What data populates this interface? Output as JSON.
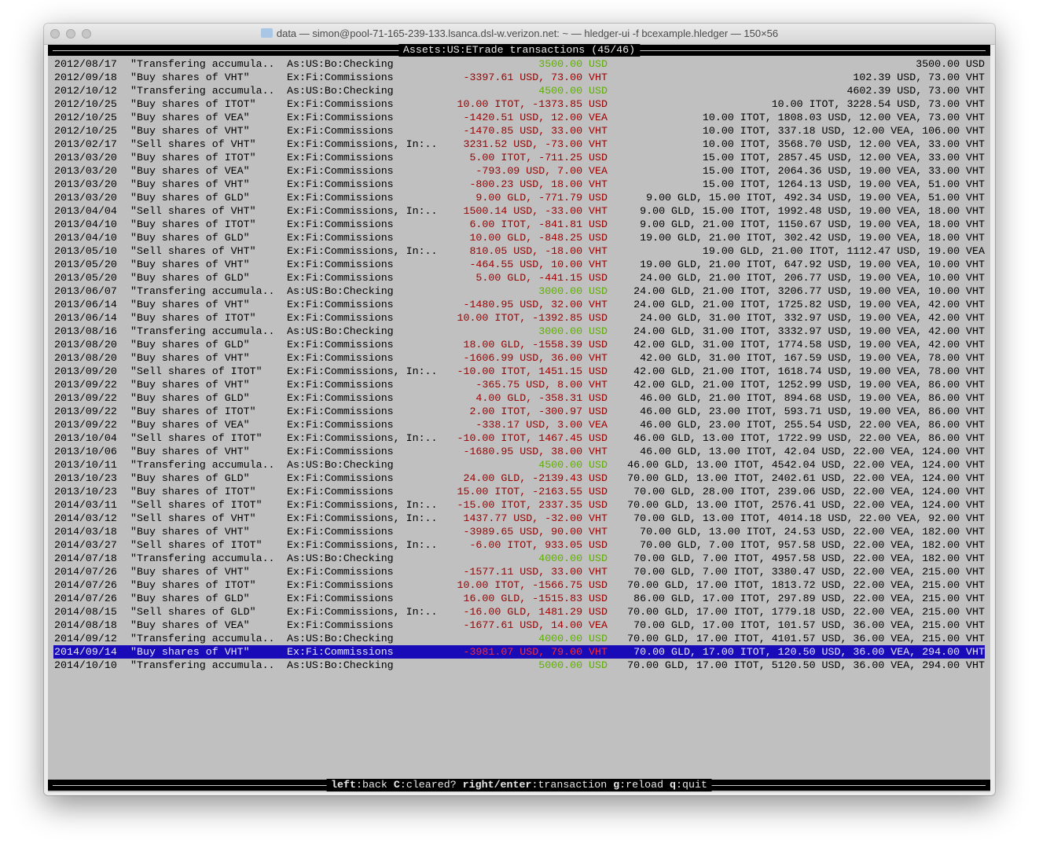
{
  "window": {
    "title": "data — simon@pool-71-165-239-133.lsanca.dsl-w.verizon.net: ~ — hledger-ui -f bcexample.hledger — 150×56"
  },
  "header": {
    "account": "Assets:US:ETrade",
    "suffix": " transactions (45/46)"
  },
  "colors": {
    "negative": "#a00000",
    "positive": "#5faf00",
    "selection": "#1a0bb8",
    "background": "#c0c0c0"
  },
  "selected_index": 44,
  "rows": [
    {
      "date": "2012/08/17",
      "desc": "\"Transfering accumula..",
      "account": "As:US:Bo:Checking",
      "amount": "3500.00 USD",
      "sign": "pos",
      "balance": "3500.00 USD"
    },
    {
      "date": "2012/09/18",
      "desc": "\"Buy shares of VHT\"",
      "account": "Ex:Fi:Commissions",
      "amount": "-3397.61 USD, 73.00 VHT",
      "sign": "neg",
      "balance": "102.39 USD, 73.00 VHT"
    },
    {
      "date": "2012/10/12",
      "desc": "\"Transfering accumula..",
      "account": "As:US:Bo:Checking",
      "amount": "4500.00 USD",
      "sign": "pos",
      "balance": "4602.39 USD, 73.00 VHT"
    },
    {
      "date": "2012/10/25",
      "desc": "\"Buy shares of ITOT\"",
      "account": "Ex:Fi:Commissions",
      "amount": "10.00 ITOT, -1373.85 USD",
      "sign": "neg",
      "balance": "10.00 ITOT, 3228.54 USD, 73.00 VHT"
    },
    {
      "date": "2012/10/25",
      "desc": "\"Buy shares of VEA\"",
      "account": "Ex:Fi:Commissions",
      "amount": "-1420.51 USD, 12.00 VEA",
      "sign": "neg",
      "balance": "10.00 ITOT, 1808.03 USD, 12.00 VEA, 73.00 VHT"
    },
    {
      "date": "2012/10/25",
      "desc": "\"Buy shares of VHT\"",
      "account": "Ex:Fi:Commissions",
      "amount": "-1470.85 USD, 33.00 VHT",
      "sign": "neg",
      "balance": "10.00 ITOT, 337.18 USD, 12.00 VEA, 106.00 VHT"
    },
    {
      "date": "2013/02/17",
      "desc": "\"Sell shares of VHT\"",
      "account": "Ex:Fi:Commissions, In:..",
      "amount": "3231.52 USD, -73.00 VHT",
      "sign": "neg",
      "balance": "10.00 ITOT, 3568.70 USD, 12.00 VEA, 33.00 VHT"
    },
    {
      "date": "2013/03/20",
      "desc": "\"Buy shares of ITOT\"",
      "account": "Ex:Fi:Commissions",
      "amount": "5.00 ITOT, -711.25 USD",
      "sign": "neg",
      "balance": "15.00 ITOT, 2857.45 USD, 12.00 VEA, 33.00 VHT"
    },
    {
      "date": "2013/03/20",
      "desc": "\"Buy shares of VEA\"",
      "account": "Ex:Fi:Commissions",
      "amount": "-793.09 USD, 7.00 VEA",
      "sign": "neg",
      "balance": "15.00 ITOT, 2064.36 USD, 19.00 VEA, 33.00 VHT"
    },
    {
      "date": "2013/03/20",
      "desc": "\"Buy shares of VHT\"",
      "account": "Ex:Fi:Commissions",
      "amount": "-800.23 USD, 18.00 VHT",
      "sign": "neg",
      "balance": "15.00 ITOT, 1264.13 USD, 19.00 VEA, 51.00 VHT"
    },
    {
      "date": "2013/03/20",
      "desc": "\"Buy shares of GLD\"",
      "account": "Ex:Fi:Commissions",
      "amount": "9.00 GLD, -771.79 USD",
      "sign": "neg",
      "balance": "9.00 GLD, 15.00 ITOT, 492.34 USD, 19.00 VEA, 51.00 VHT"
    },
    {
      "date": "2013/04/04",
      "desc": "\"Sell shares of VHT\"",
      "account": "Ex:Fi:Commissions, In:..",
      "amount": "1500.14 USD, -33.00 VHT",
      "sign": "neg",
      "balance": "9.00 GLD, 15.00 ITOT, 1992.48 USD, 19.00 VEA, 18.00 VHT"
    },
    {
      "date": "2013/04/10",
      "desc": "\"Buy shares of ITOT\"",
      "account": "Ex:Fi:Commissions",
      "amount": "6.00 ITOT, -841.81 USD",
      "sign": "neg",
      "balance": "9.00 GLD, 21.00 ITOT, 1150.67 USD, 19.00 VEA, 18.00 VHT"
    },
    {
      "date": "2013/04/10",
      "desc": "\"Buy shares of GLD\"",
      "account": "Ex:Fi:Commissions",
      "amount": "10.00 GLD, -848.25 USD",
      "sign": "neg",
      "balance": "19.00 GLD, 21.00 ITOT, 302.42 USD, 19.00 VEA, 18.00 VHT"
    },
    {
      "date": "2013/05/10",
      "desc": "\"Sell shares of VHT\"",
      "account": "Ex:Fi:Commissions, In:..",
      "amount": "810.05 USD, -18.00 VHT",
      "sign": "neg",
      "balance": "19.00 GLD, 21.00 ITOT, 1112.47 USD, 19.00 VEA"
    },
    {
      "date": "2013/05/20",
      "desc": "\"Buy shares of VHT\"",
      "account": "Ex:Fi:Commissions",
      "amount": "-464.55 USD, 10.00 VHT",
      "sign": "neg",
      "balance": "19.00 GLD, 21.00 ITOT, 647.92 USD, 19.00 VEA, 10.00 VHT"
    },
    {
      "date": "2013/05/20",
      "desc": "\"Buy shares of GLD\"",
      "account": "Ex:Fi:Commissions",
      "amount": "5.00 GLD, -441.15 USD",
      "sign": "neg",
      "balance": "24.00 GLD, 21.00 ITOT, 206.77 USD, 19.00 VEA, 10.00 VHT"
    },
    {
      "date": "2013/06/07",
      "desc": "\"Transfering accumula..",
      "account": "As:US:Bo:Checking",
      "amount": "3000.00 USD",
      "sign": "pos",
      "balance": "24.00 GLD, 21.00 ITOT, 3206.77 USD, 19.00 VEA, 10.00 VHT"
    },
    {
      "date": "2013/06/14",
      "desc": "\"Buy shares of VHT\"",
      "account": "Ex:Fi:Commissions",
      "amount": "-1480.95 USD, 32.00 VHT",
      "sign": "neg",
      "balance": "24.00 GLD, 21.00 ITOT, 1725.82 USD, 19.00 VEA, 42.00 VHT"
    },
    {
      "date": "2013/06/14",
      "desc": "\"Buy shares of ITOT\"",
      "account": "Ex:Fi:Commissions",
      "amount": "10.00 ITOT, -1392.85 USD",
      "sign": "neg",
      "balance": "24.00 GLD, 31.00 ITOT, 332.97 USD, 19.00 VEA, 42.00 VHT"
    },
    {
      "date": "2013/08/16",
      "desc": "\"Transfering accumula..",
      "account": "As:US:Bo:Checking",
      "amount": "3000.00 USD",
      "sign": "pos",
      "balance": "24.00 GLD, 31.00 ITOT, 3332.97 USD, 19.00 VEA, 42.00 VHT"
    },
    {
      "date": "2013/08/20",
      "desc": "\"Buy shares of GLD\"",
      "account": "Ex:Fi:Commissions",
      "amount": "18.00 GLD, -1558.39 USD",
      "sign": "neg",
      "balance": "42.00 GLD, 31.00 ITOT, 1774.58 USD, 19.00 VEA, 42.00 VHT"
    },
    {
      "date": "2013/08/20",
      "desc": "\"Buy shares of VHT\"",
      "account": "Ex:Fi:Commissions",
      "amount": "-1606.99 USD, 36.00 VHT",
      "sign": "neg",
      "balance": "42.00 GLD, 31.00 ITOT, 167.59 USD, 19.00 VEA, 78.00 VHT"
    },
    {
      "date": "2013/09/20",
      "desc": "\"Sell shares of ITOT\"",
      "account": "Ex:Fi:Commissions, In:..",
      "amount": "-10.00 ITOT, 1451.15 USD",
      "sign": "neg",
      "balance": "42.00 GLD, 21.00 ITOT, 1618.74 USD, 19.00 VEA, 78.00 VHT"
    },
    {
      "date": "2013/09/22",
      "desc": "\"Buy shares of VHT\"",
      "account": "Ex:Fi:Commissions",
      "amount": "-365.75 USD, 8.00 VHT",
      "sign": "neg",
      "balance": "42.00 GLD, 21.00 ITOT, 1252.99 USD, 19.00 VEA, 86.00 VHT"
    },
    {
      "date": "2013/09/22",
      "desc": "\"Buy shares of GLD\"",
      "account": "Ex:Fi:Commissions",
      "amount": "4.00 GLD, -358.31 USD",
      "sign": "neg",
      "balance": "46.00 GLD, 21.00 ITOT, 894.68 USD, 19.00 VEA, 86.00 VHT"
    },
    {
      "date": "2013/09/22",
      "desc": "\"Buy shares of ITOT\"",
      "account": "Ex:Fi:Commissions",
      "amount": "2.00 ITOT, -300.97 USD",
      "sign": "neg",
      "balance": "46.00 GLD, 23.00 ITOT, 593.71 USD, 19.00 VEA, 86.00 VHT"
    },
    {
      "date": "2013/09/22",
      "desc": "\"Buy shares of VEA\"",
      "account": "Ex:Fi:Commissions",
      "amount": "-338.17 USD, 3.00 VEA",
      "sign": "neg",
      "balance": "46.00 GLD, 23.00 ITOT, 255.54 USD, 22.00 VEA, 86.00 VHT"
    },
    {
      "date": "2013/10/04",
      "desc": "\"Sell shares of ITOT\"",
      "account": "Ex:Fi:Commissions, In:..",
      "amount": "-10.00 ITOT, 1467.45 USD",
      "sign": "neg",
      "balance": "46.00 GLD, 13.00 ITOT, 1722.99 USD, 22.00 VEA, 86.00 VHT"
    },
    {
      "date": "2013/10/06",
      "desc": "\"Buy shares of VHT\"",
      "account": "Ex:Fi:Commissions",
      "amount": "-1680.95 USD, 38.00 VHT",
      "sign": "neg",
      "balance": "46.00 GLD, 13.00 ITOT, 42.04 USD, 22.00 VEA, 124.00 VHT"
    },
    {
      "date": "2013/10/11",
      "desc": "\"Transfering accumula..",
      "account": "As:US:Bo:Checking",
      "amount": "4500.00 USD",
      "sign": "pos",
      "balance": "46.00 GLD, 13.00 ITOT, 4542.04 USD, 22.00 VEA, 124.00 VHT"
    },
    {
      "date": "2013/10/23",
      "desc": "\"Buy shares of GLD\"",
      "account": "Ex:Fi:Commissions",
      "amount": "24.00 GLD, -2139.43 USD",
      "sign": "neg",
      "balance": "70.00 GLD, 13.00 ITOT, 2402.61 USD, 22.00 VEA, 124.00 VHT"
    },
    {
      "date": "2013/10/23",
      "desc": "\"Buy shares of ITOT\"",
      "account": "Ex:Fi:Commissions",
      "amount": "15.00 ITOT, -2163.55 USD",
      "sign": "neg",
      "balance": "70.00 GLD, 28.00 ITOT, 239.06 USD, 22.00 VEA, 124.00 VHT"
    },
    {
      "date": "2014/03/11",
      "desc": "\"Sell shares of ITOT\"",
      "account": "Ex:Fi:Commissions, In:..",
      "amount": "-15.00 ITOT, 2337.35 USD",
      "sign": "neg",
      "balance": "70.00 GLD, 13.00 ITOT, 2576.41 USD, 22.00 VEA, 124.00 VHT"
    },
    {
      "date": "2014/03/12",
      "desc": "\"Sell shares of VHT\"",
      "account": "Ex:Fi:Commissions, In:..",
      "amount": "1437.77 USD, -32.00 VHT",
      "sign": "neg",
      "balance": "70.00 GLD, 13.00 ITOT, 4014.18 USD, 22.00 VEA, 92.00 VHT"
    },
    {
      "date": "2014/03/18",
      "desc": "\"Buy shares of VHT\"",
      "account": "Ex:Fi:Commissions",
      "amount": "-3989.65 USD, 90.00 VHT",
      "sign": "neg",
      "balance": "70.00 GLD, 13.00 ITOT, 24.53 USD, 22.00 VEA, 182.00 VHT"
    },
    {
      "date": "2014/03/27",
      "desc": "\"Sell shares of ITOT\"",
      "account": "Ex:Fi:Commissions, In:..",
      "amount": "-6.00 ITOT, 933.05 USD",
      "sign": "neg",
      "balance": "70.00 GLD, 7.00 ITOT, 957.58 USD, 22.00 VEA, 182.00 VHT"
    },
    {
      "date": "2014/07/18",
      "desc": "\"Transfering accumula..",
      "account": "As:US:Bo:Checking",
      "amount": "4000.00 USD",
      "sign": "pos",
      "balance": "70.00 GLD, 7.00 ITOT, 4957.58 USD, 22.00 VEA, 182.00 VHT"
    },
    {
      "date": "2014/07/26",
      "desc": "\"Buy shares of VHT\"",
      "account": "Ex:Fi:Commissions",
      "amount": "-1577.11 USD, 33.00 VHT",
      "sign": "neg",
      "balance": "70.00 GLD, 7.00 ITOT, 3380.47 USD, 22.00 VEA, 215.00 VHT"
    },
    {
      "date": "2014/07/26",
      "desc": "\"Buy shares of ITOT\"",
      "account": "Ex:Fi:Commissions",
      "amount": "10.00 ITOT, -1566.75 USD",
      "sign": "neg",
      "balance": "70.00 GLD, 17.00 ITOT, 1813.72 USD, 22.00 VEA, 215.00 VHT"
    },
    {
      "date": "2014/07/26",
      "desc": "\"Buy shares of GLD\"",
      "account": "Ex:Fi:Commissions",
      "amount": "16.00 GLD, -1515.83 USD",
      "sign": "neg",
      "balance": "86.00 GLD, 17.00 ITOT, 297.89 USD, 22.00 VEA, 215.00 VHT"
    },
    {
      "date": "2014/08/15",
      "desc": "\"Sell shares of GLD\"",
      "account": "Ex:Fi:Commissions, In:..",
      "amount": "-16.00 GLD, 1481.29 USD",
      "sign": "neg",
      "balance": "70.00 GLD, 17.00 ITOT, 1779.18 USD, 22.00 VEA, 215.00 VHT"
    },
    {
      "date": "2014/08/18",
      "desc": "\"Buy shares of VEA\"",
      "account": "Ex:Fi:Commissions",
      "amount": "-1677.61 USD, 14.00 VEA",
      "sign": "neg",
      "balance": "70.00 GLD, 17.00 ITOT, 101.57 USD, 36.00 VEA, 215.00 VHT"
    },
    {
      "date": "2014/09/12",
      "desc": "\"Transfering accumula..",
      "account": "As:US:Bo:Checking",
      "amount": "4000.00 USD",
      "sign": "pos",
      "balance": "70.00 GLD, 17.00 ITOT, 4101.57 USD, 36.00 VEA, 215.00 VHT"
    },
    {
      "date": "2014/09/14",
      "desc": "\"Buy shares of VHT\"",
      "account": "Ex:Fi:Commissions",
      "amount": "-3981.07 USD, 79.00 VHT",
      "sign": "neg",
      "balance": "70.00 GLD, 17.00 ITOT, 120.50 USD, 36.00 VEA, 294.00 VHT"
    },
    {
      "date": "2014/10/10",
      "desc": "\"Transfering accumula..",
      "account": "As:US:Bo:Checking",
      "amount": "5000.00 USD",
      "sign": "pos",
      "balance": "70.00 GLD, 17.00 ITOT, 5120.50 USD, 36.00 VEA, 294.00 VHT"
    }
  ],
  "footer": {
    "keys": [
      {
        "key": "left",
        "action": "back"
      },
      {
        "key": "C",
        "action": "cleared?"
      },
      {
        "key": "right/enter",
        "action": "transaction"
      },
      {
        "key": "g",
        "action": "reload"
      },
      {
        "key": "q",
        "action": "quit"
      }
    ]
  }
}
